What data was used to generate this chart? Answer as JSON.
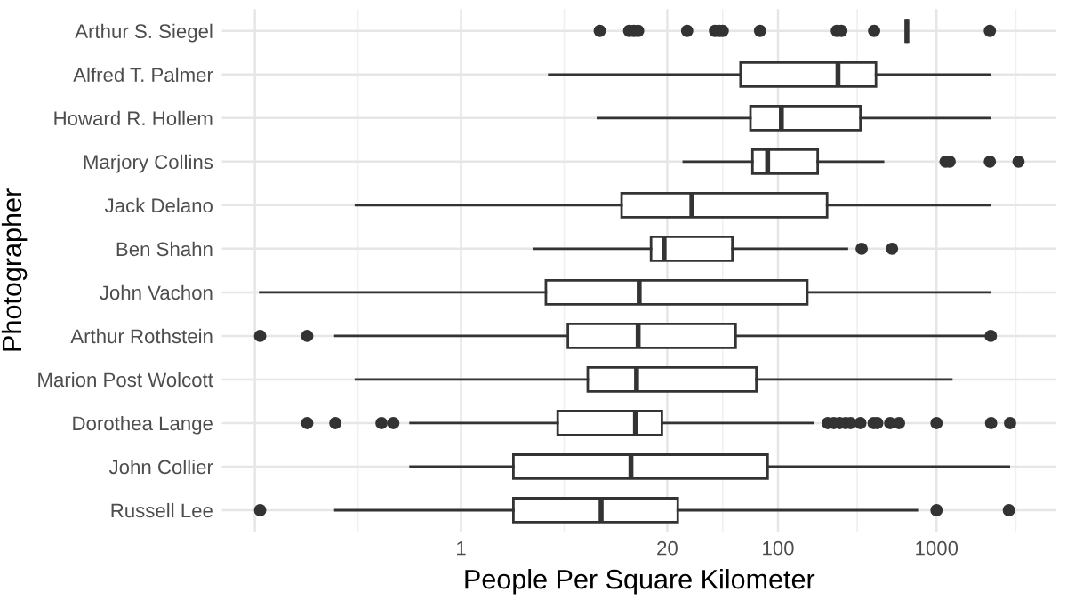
{
  "chart_data": {
    "type": "box",
    "orientation": "horizontal",
    "log": "x",
    "grid": true,
    "xlabel": "People Per Square Kilometer",
    "ylabel": "Photographer",
    "categories": [
      "Arthur S. Siegel",
      "Alfred T. Palmer",
      "Howard R. Hollem",
      "Marjory Collins",
      "Jack Delano",
      "Ben Shahn",
      "John Vachon",
      "Arthur Rothstein",
      "Marion Post Wolcott",
      "Dorothea Lange",
      "John Collier",
      "Russell Lee"
    ],
    "xlim": [
      0.031,
      5700
    ],
    "xticks": [
      {
        "value": 0.05,
        "label": null
      },
      1,
      20,
      100,
      1000
    ],
    "color": "#333333",
    "boxes": [
      {
        "low": 650,
        "q1": 650,
        "median": 650,
        "q3": 650,
        "high": 650,
        "outliers": [
          7.5,
          11.5,
          12.3,
          13.1,
          26.7,
          40,
          42.6,
          44.8,
          77,
          235,
          251,
          404,
          2170
        ]
      },
      {
        "low": 3.6,
        "q1": 58,
        "median": 239,
        "q3": 415,
        "high": 2170
      },
      {
        "low": 7.3,
        "q1": 67,
        "median": 105,
        "q3": 331,
        "high": 2170
      },
      {
        "low": 25.4,
        "q1": 69,
        "median": 86,
        "q3": 178,
        "high": 460,
        "outliers": [
          1140,
          1210,
          2170,
          3290
        ]
      },
      {
        "low": 0.217,
        "q1": 10.3,
        "median": 28.6,
        "q3": 204,
        "high": 2170
      },
      {
        "low": 2.9,
        "q1": 15.8,
        "median": 19.1,
        "q3": 51.5,
        "high": 272,
        "outliers": [
          337,
          524
        ]
      },
      {
        "low": 0.054,
        "q1": 3.43,
        "median": 13.3,
        "q3": 153,
        "high": 2170
      },
      {
        "low": 0.161,
        "q1": 4.72,
        "median": 13.1,
        "q3": 54,
        "high": 2100,
        "outliers": [
          0.054,
          0.107,
          2200
        ]
      },
      {
        "low": 0.217,
        "q1": 6.3,
        "median": 12.8,
        "q3": 73,
        "high": 1240
      },
      {
        "low": 0.48,
        "q1": 4.07,
        "median": 12.6,
        "q3": 18.5,
        "high": 166,
        "outliers": [
          0.107,
          0.161,
          0.315,
          0.374,
          206,
          225,
          245,
          267,
          287,
          331,
          401,
          423,
          510,
          580,
          1000,
          2210,
          2910
        ]
      },
      {
        "low": 0.48,
        "q1": 2.14,
        "median": 11.8,
        "q3": 86,
        "high": 2860
      },
      {
        "low": 0.161,
        "q1": 2.14,
        "median": 7.65,
        "q3": 23.3,
        "high": 752,
        "outliers": [
          0.054,
          1000,
          2860
        ]
      }
    ]
  }
}
